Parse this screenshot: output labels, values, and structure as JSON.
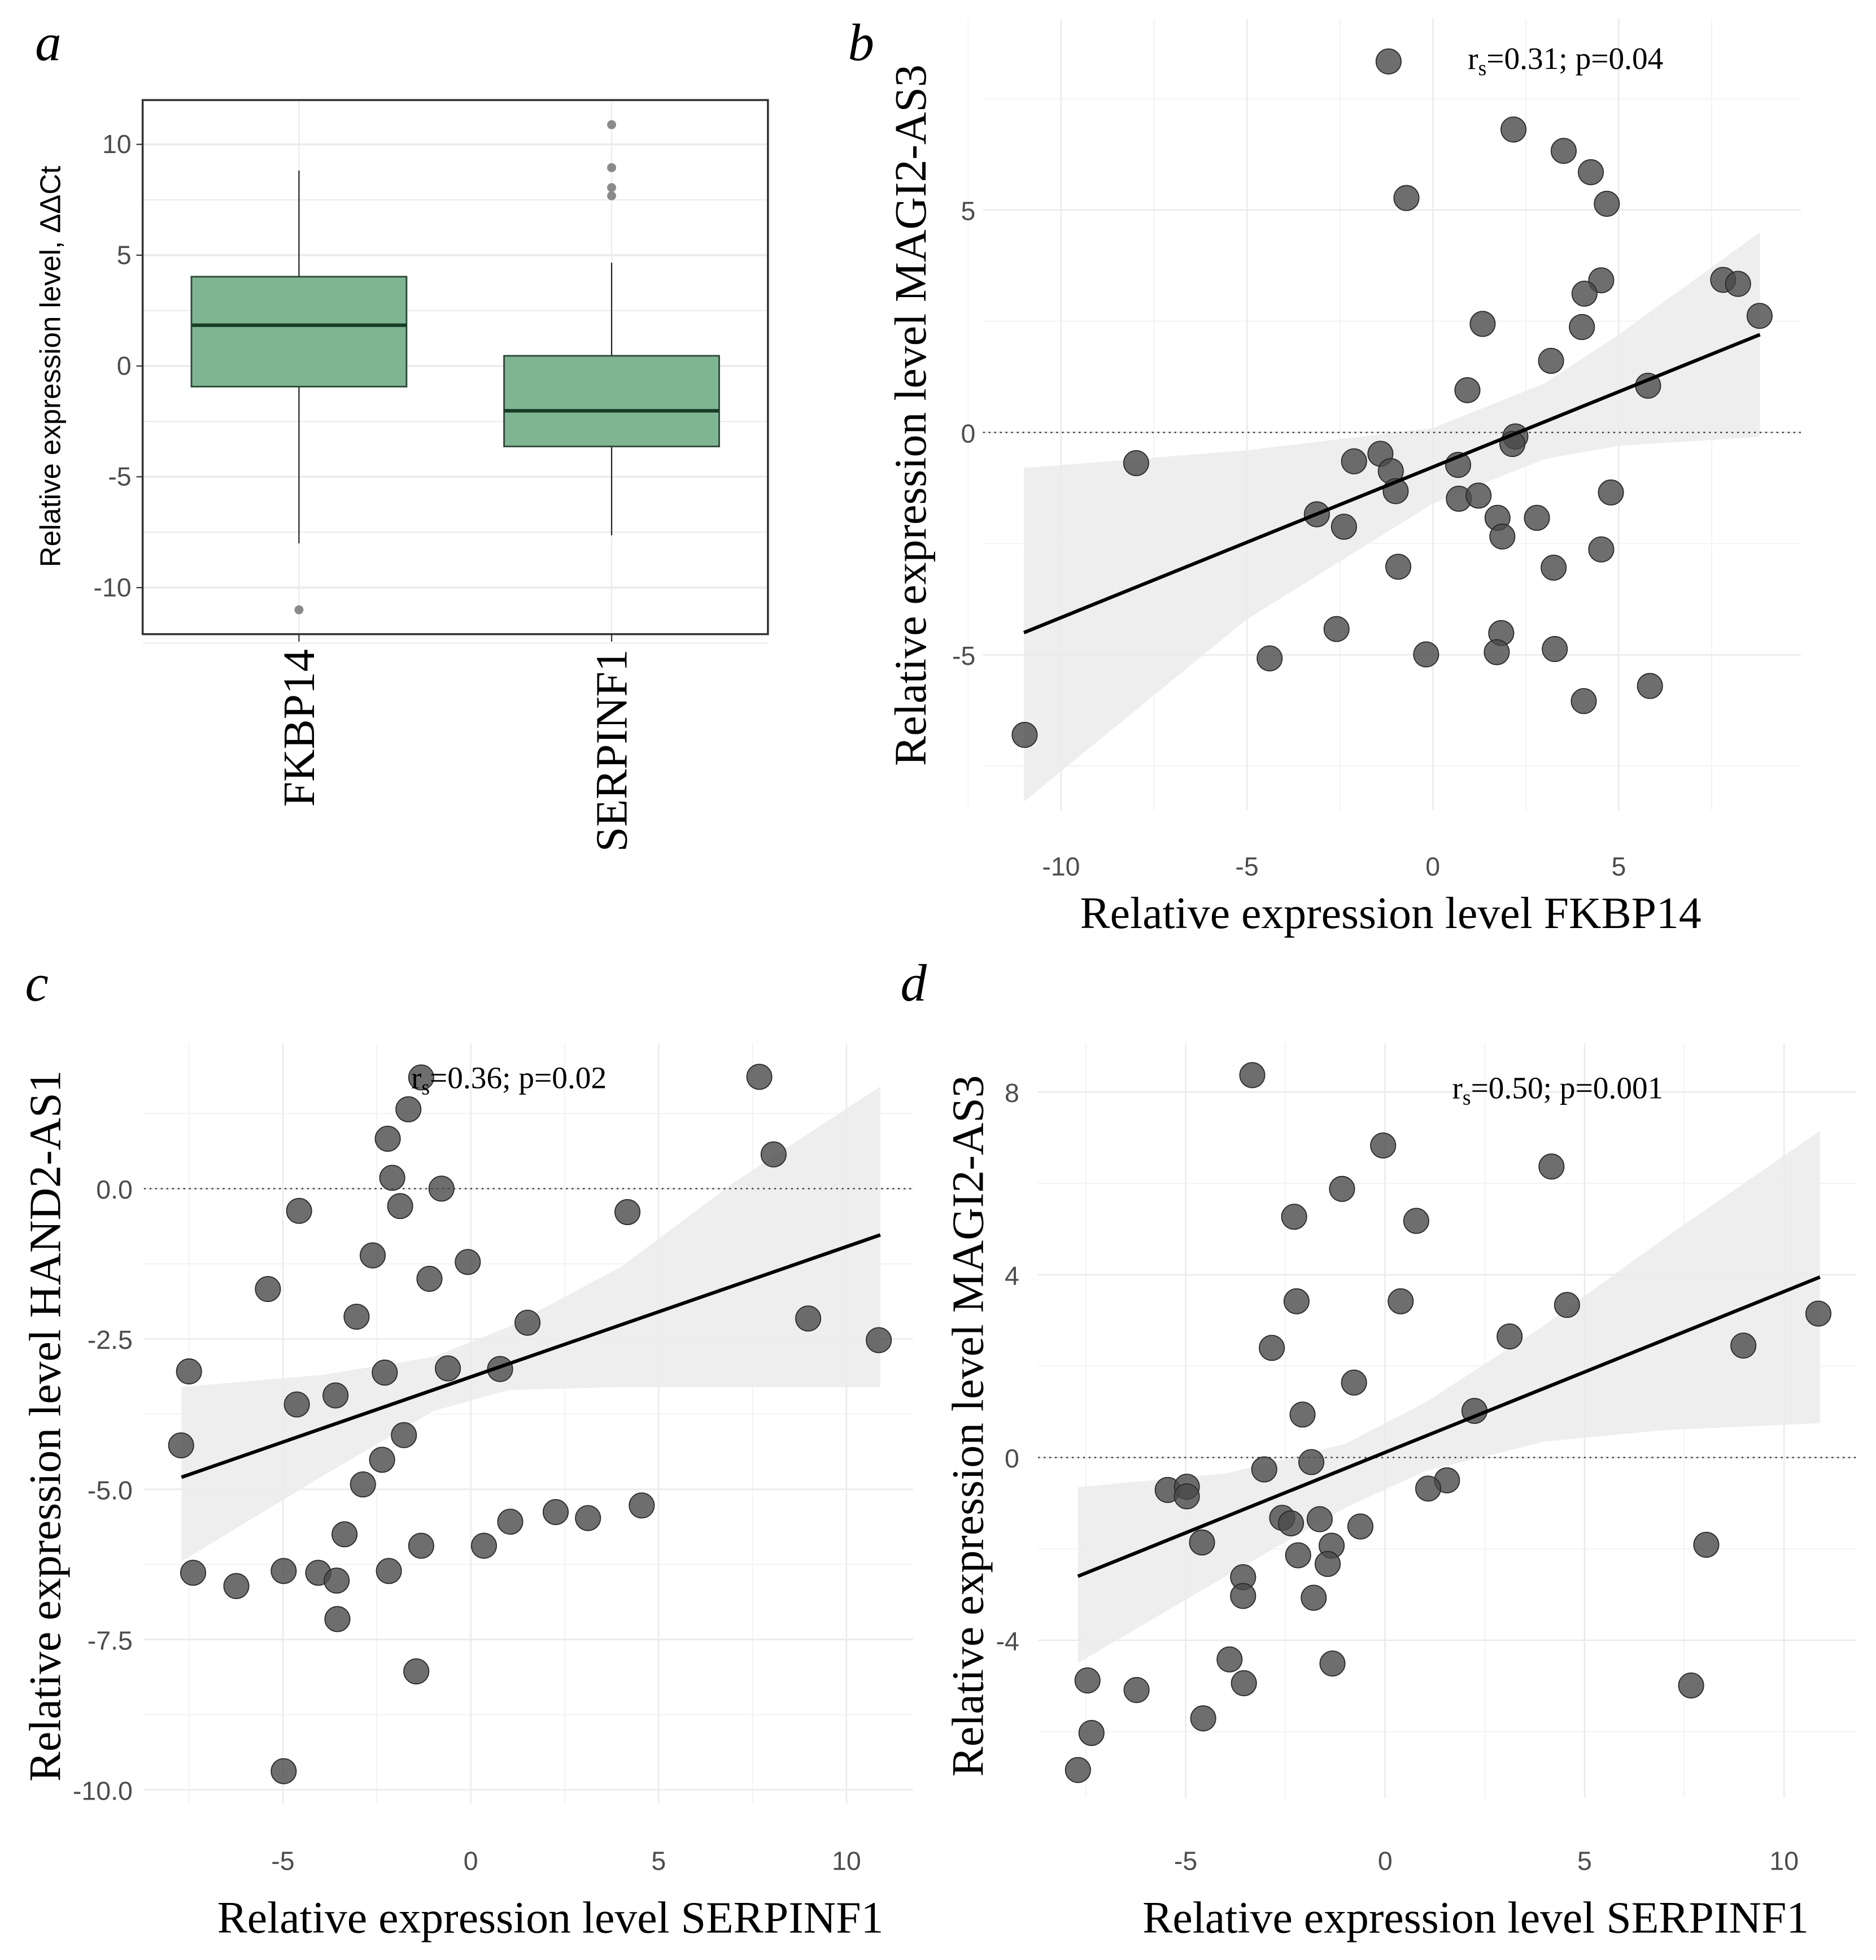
{
  "colors": {
    "box_fill": "#80b594",
    "box_stroke": "#2b4a36",
    "median": "#173d26",
    "point": "#4a4a4a",
    "band": "#ebebeb",
    "grid": "#ebebeb",
    "outlier": "#8a8a8a"
  },
  "chart_data": [
    {
      "type": "box",
      "panel_label": "a",
      "categories": [
        "FKBP14",
        "SERPINF1"
      ],
      "ylabel": "Relative expression level, ΔΔCt",
      "xlabel": "",
      "ylim": [
        -12.1,
        12
      ],
      "yticks": [
        "10",
        "5",
        "0",
        "-5",
        "-10"
      ],
      "ytick_values": [
        10,
        5,
        0,
        -5,
        -10
      ],
      "boxes": [
        {
          "name": "FKBP14",
          "q1": -0.93,
          "median": 1.84,
          "q3": 4.03,
          "whisker_low": -8.0,
          "whisker_high": 8.82,
          "outliers": [
            -11.0
          ]
        },
        {
          "name": "SERPINF1",
          "q1": -3.63,
          "median": -2.02,
          "q3": 0.46,
          "whisker_low": -7.64,
          "whisker_high": 4.66,
          "outliers": [
            10.89,
            8.95,
            8.05,
            7.68
          ]
        }
      ]
    },
    {
      "type": "scatter",
      "panel_label": "b",
      "xlabel": "Relative expression level FKBP14",
      "ylabel": "Relative expression level MAGI2-AS3",
      "annotation": {
        "r": "r",
        "sub": "s",
        "rest": "=0.31; p=0.04"
      },
      "xlim": [
        -12.1,
        9.9
      ],
      "ylim": [
        -8.5,
        9.3
      ],
      "xticks": [
        -10,
        -5,
        0,
        5
      ],
      "xtick_labels": [
        "-10",
        "-5",
        "0",
        "5"
      ],
      "yticks": [
        -5,
        0,
        5
      ],
      "ytick_labels": [
        "-5",
        "0",
        "5"
      ],
      "xminor": [
        -12.5,
        -7.5,
        -2.5,
        2.5,
        7.5
      ],
      "yminor": [
        -7.5,
        -2.5,
        2.5,
        7.5
      ],
      "fit": {
        "x": [
          -11,
          8.8
        ],
        "y": [
          -4.5,
          2.2
        ]
      },
      "band": {
        "x": [
          -11,
          -5,
          0,
          3,
          5,
          8.8
        ],
        "upper": [
          -0.8,
          -0.4,
          0.1,
          1.1,
          2.2,
          4.5
        ],
        "lower": [
          -8.3,
          -4.2,
          -1.6,
          -0.6,
          -0.3,
          -0.1
        ]
      },
      "points": [
        [
          -1.19,
          8.34
        ],
        [
          2.17,
          6.81
        ],
        [
          3.52,
          6.33
        ],
        [
          4.25,
          5.85
        ],
        [
          -0.71,
          5.27
        ],
        [
          4.68,
          5.14
        ],
        [
          4.53,
          3.42
        ],
        [
          4.08,
          3.12
        ],
        [
          7.81,
          3.43
        ],
        [
          8.21,
          3.34
        ],
        [
          8.79,
          2.62
        ],
        [
          1.34,
          2.44
        ],
        [
          4.01,
          2.37
        ],
        [
          3.18,
          1.61
        ],
        [
          0.93,
          0.95
        ],
        [
          5.79,
          1.05
        ],
        [
          2.22,
          -0.09
        ],
        [
          2.14,
          -0.26
        ],
        [
          -7.98,
          -0.69
        ],
        [
          -1.41,
          -0.48
        ],
        [
          -2.12,
          -0.65
        ],
        [
          -1.13,
          -0.87
        ],
        [
          -1.0,
          -1.32
        ],
        [
          0.68,
          -0.73
        ],
        [
          0.7,
          -1.49
        ],
        [
          1.23,
          -1.42
        ],
        [
          4.79,
          -1.35
        ],
        [
          -3.12,
          -1.84
        ],
        [
          -2.39,
          -2.12
        ],
        [
          1.74,
          -1.92
        ],
        [
          2.8,
          -1.92
        ],
        [
          1.87,
          -2.34
        ],
        [
          4.53,
          -2.63
        ],
        [
          -0.93,
          -3.02
        ],
        [
          3.25,
          -3.04
        ],
        [
          -2.59,
          -4.42
        ],
        [
          1.84,
          -4.51
        ],
        [
          1.72,
          -4.94
        ],
        [
          3.28,
          -4.87
        ],
        [
          -0.18,
          -4.99
        ],
        [
          -4.39,
          -5.08
        ],
        [
          5.84,
          -5.7
        ],
        [
          4.06,
          -6.04
        ],
        [
          -10.98,
          -6.8
        ]
      ]
    },
    {
      "type": "scatter",
      "panel_label": "c",
      "xlabel": "Relative expression level SERPINF1",
      "ylabel": "Relative expression level HAND2-AS1",
      "annotation": {
        "r": "r",
        "sub": "s",
        "rest": "=0.36; p=0.02"
      },
      "xlim": [
        -8.7,
        11.77
      ],
      "ylim": [
        -10.23,
        2.42
      ],
      "xticks": [
        -5,
        0,
        5,
        10
      ],
      "xtick_labels": [
        "-5",
        "0",
        "5",
        "10"
      ],
      "yticks": [
        0,
        -2.5,
        -5,
        -7.5,
        -10
      ],
      "ytick_labels": [
        "0.0",
        "-2.5",
        "-5.0",
        "-7.5",
        "-10.0"
      ],
      "xminor": [
        -7.5,
        -2.5,
        2.5,
        7.5
      ],
      "yminor": [
        1.25,
        -1.25,
        -3.75,
        -6.25,
        -8.75
      ],
      "fit": {
        "x": [
          -7.7,
          10.9
        ],
        "y": [
          -4.8,
          -0.77
        ]
      },
      "band": {
        "x": [
          -7.7,
          -4,
          -1,
          1,
          4,
          7,
          10.9
        ],
        "upper": [
          -3.3,
          -3.1,
          -2.8,
          -2.3,
          -1.3,
          0.1,
          1.7
        ],
        "lower": [
          -6.2,
          -4.8,
          -3.7,
          -3.35,
          -3.3,
          -3.3,
          -3.3
        ]
      },
      "points": [
        [
          -1.32,
          1.85
        ],
        [
          7.68,
          1.86
        ],
        [
          -1.66,
          1.32
        ],
        [
          -2.21,
          0.83
        ],
        [
          8.06,
          0.57
        ],
        [
          -2.09,
          0.18
        ],
        [
          -0.78,
          0.0
        ],
        [
          -1.88,
          -0.29
        ],
        [
          -4.57,
          -0.37
        ],
        [
          4.17,
          -0.39
        ],
        [
          -2.61,
          -1.11
        ],
        [
          -0.08,
          -1.22
        ],
        [
          -1.1,
          -1.5
        ],
        [
          -5.4,
          -1.67
        ],
        [
          -3.04,
          -2.13
        ],
        [
          1.51,
          -2.23
        ],
        [
          8.98,
          -2.16
        ],
        [
          10.86,
          -2.52
        ],
        [
          -7.5,
          -3.04
        ],
        [
          -2.29,
          -3.06
        ],
        [
          -0.61,
          -2.99
        ],
        [
          0.78,
          -3.0
        ],
        [
          -3.6,
          -3.44
        ],
        [
          -4.63,
          -3.59
        ],
        [
          -7.71,
          -4.27
        ],
        [
          -1.78,
          -4.1
        ],
        [
          -2.36,
          -4.51
        ],
        [
          -2.87,
          -4.92
        ],
        [
          4.55,
          -5.27
        ],
        [
          2.26,
          -5.38
        ],
        [
          3.12,
          -5.48
        ],
        [
          1.05,
          -5.54
        ],
        [
          -3.36,
          -5.75
        ],
        [
          -1.32,
          -5.94
        ],
        [
          0.35,
          -5.94
        ],
        [
          -7.39,
          -6.39
        ],
        [
          -4.98,
          -6.36
        ],
        [
          -2.18,
          -6.36
        ],
        [
          -4.06,
          -6.39
        ],
        [
          -3.57,
          -6.52
        ],
        [
          -6.24,
          -6.61
        ],
        [
          -3.55,
          -7.16
        ],
        [
          -1.45,
          -8.03
        ],
        [
          -4.98,
          -9.69
        ]
      ]
    },
    {
      "type": "scatter",
      "panel_label": "d",
      "xlabel": "Relative expression level SERPINF1",
      "ylabel": "Relative expression level MAGI2-AS3",
      "annotation": {
        "r": "r",
        "sub": "s",
        "rest": "=0.50; p=0.001"
      },
      "xlim": [
        -8.7,
        11.8
      ],
      "ylim": [
        -7.44,
        9.07
      ],
      "xticks": [
        -5,
        0,
        5,
        10
      ],
      "xtick_labels": [
        "-5",
        "0",
        "5",
        "10"
      ],
      "yticks": [
        8,
        4,
        0,
        -4
      ],
      "ytick_labels": [
        "8",
        "4",
        "0",
        "-4"
      ],
      "xminor": [
        -7.5,
        -2.5,
        2.5,
        7.5
      ],
      "yminor": [
        6,
        2,
        -2,
        -6
      ],
      "fit": {
        "x": [
          -7.7,
          10.9
        ],
        "y": [
          -2.6,
          3.95
        ]
      },
      "band": {
        "x": [
          -7.7,
          -4,
          -1,
          1,
          4,
          7,
          10.9
        ],
        "upper": [
          -0.65,
          -0.35,
          0.3,
          1.2,
          2.9,
          4.8,
          7.15
        ],
        "lower": [
          -4.5,
          -2.6,
          -1.1,
          -0.3,
          0.35,
          0.6,
          0.75
        ]
      },
      "points": [
        [
          -3.33,
          8.37
        ],
        [
          -0.05,
          6.83
        ],
        [
          4.17,
          6.37
        ],
        [
          -1.08,
          5.88
        ],
        [
          -2.28,
          5.27
        ],
        [
          0.78,
          5.18
        ],
        [
          -2.22,
          3.42
        ],
        [
          0.39,
          3.42
        ],
        [
          4.56,
          3.34
        ],
        [
          3.12,
          2.65
        ],
        [
          -2.84,
          2.4
        ],
        [
          8.98,
          2.45
        ],
        [
          10.86,
          3.15
        ],
        [
          -0.78,
          1.64
        ],
        [
          -2.07,
          0.94
        ],
        [
          2.24,
          1.02
        ],
        [
          -3.03,
          -0.26
        ],
        [
          -1.85,
          -0.1
        ],
        [
          1.55,
          -0.5
        ],
        [
          1.08,
          -0.68
        ],
        [
          -5.45,
          -0.71
        ],
        [
          -4.97,
          -0.64
        ],
        [
          -4.97,
          -0.85
        ],
        [
          -2.58,
          -1.32
        ],
        [
          -2.36,
          -1.44
        ],
        [
          -1.64,
          -1.35
        ],
        [
          -0.62,
          -1.51
        ],
        [
          -4.59,
          -1.86
        ],
        [
          -1.34,
          -1.93
        ],
        [
          8.05,
          -1.91
        ],
        [
          -2.18,
          -2.14
        ],
        [
          -1.44,
          -2.33
        ],
        [
          -3.56,
          -2.62
        ],
        [
          -3.56,
          -3.03
        ],
        [
          -1.79,
          -3.07
        ],
        [
          -3.9,
          -4.42
        ],
        [
          -1.32,
          -4.51
        ],
        [
          -3.54,
          -4.94
        ],
        [
          7.67,
          -4.99
        ],
        [
          -7.46,
          -4.88
        ],
        [
          -6.23,
          -5.09
        ],
        [
          -4.56,
          -5.71
        ],
        [
          -7.36,
          -6.03
        ],
        [
          -7.7,
          -6.84
        ]
      ]
    }
  ]
}
